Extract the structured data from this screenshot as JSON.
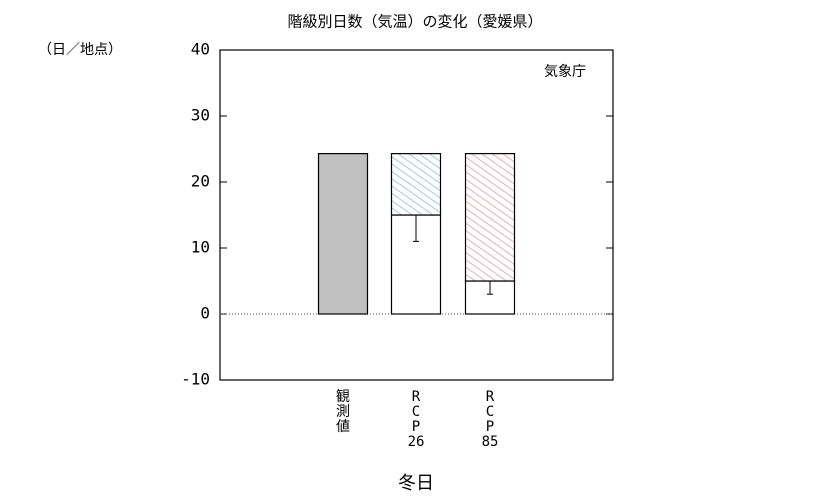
{
  "chart_data": {
    "type": "bar",
    "title": "階級別日数（気温）の変化（愛媛県）",
    "y_unit_label": "（日／地点）",
    "source": "気象庁",
    "xlabel": "冬日",
    "categories": [
      [
        "観",
        "測",
        "値"
      ],
      [
        "R",
        "C",
        "P",
        "26"
      ],
      [
        "R",
        "C",
        "P",
        "85"
      ]
    ],
    "ylim": [
      -10,
      40
    ],
    "yticks": [
      -10,
      0,
      10,
      20,
      30,
      40
    ],
    "zero_line": true,
    "series": [
      {
        "values": [
          24.3,
          null,
          null
        ],
        "color": "#c0c0c0"
      },
      {
        "values": [
          null,
          15,
          5
        ],
        "color": "#ffffff",
        "error": [
          null,
          4,
          2
        ]
      },
      {
        "values": [
          null,
          9.3,
          19.3
        ],
        "colors": [
          null,
          "#6fa8c8",
          "#d98080"
        ],
        "hatch": true
      }
    ]
  }
}
